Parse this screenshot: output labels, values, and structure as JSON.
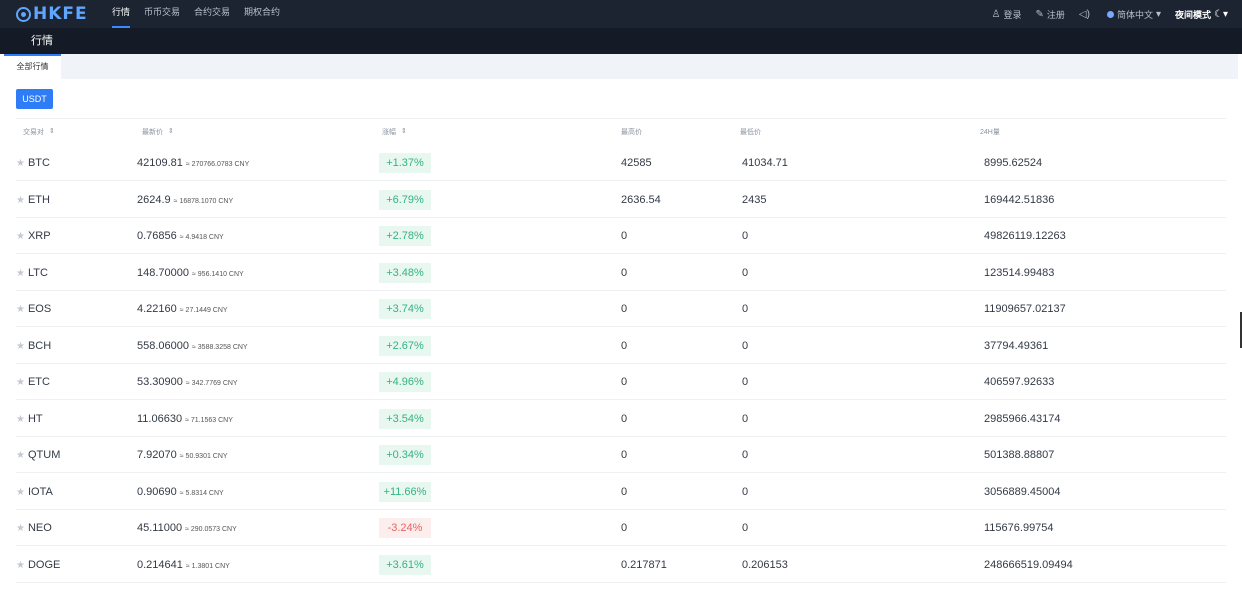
{
  "header": {
    "logo": "HKFE",
    "nav": [
      "行情",
      "币币交易",
      "合约交易",
      "期权合约"
    ],
    "login": "登录",
    "register": "注册",
    "language": "简体中文",
    "night_mode": "夜间模式"
  },
  "subbar": {
    "title": "行情"
  },
  "tabs": {
    "all": "全部行情"
  },
  "quote_button": "USDT",
  "table": {
    "headers": {
      "pair": "交易对",
      "last": "最新价",
      "change": "涨幅",
      "high": "最高价",
      "low": "最低价",
      "volume": "24H量"
    },
    "rows": [
      {
        "pair": "BTC",
        "price": "42109.81",
        "cny": "≈ 270766.0783 CNY",
        "change": "+1.37%",
        "dir": "up",
        "high": "42585",
        "low": "41034.71",
        "volume": "8995.62524"
      },
      {
        "pair": "ETH",
        "price": "2624.9",
        "cny": "≈ 16878.1070 CNY",
        "change": "+6.79%",
        "dir": "up",
        "high": "2636.54",
        "low": "2435",
        "volume": "169442.51836"
      },
      {
        "pair": "XRP",
        "price": "0.76856",
        "cny": "≈ 4.9418 CNY",
        "change": "+2.78%",
        "dir": "up",
        "high": "0",
        "low": "0",
        "volume": "49826119.12263"
      },
      {
        "pair": "LTC",
        "price": "148.70000",
        "cny": "≈ 956.1410 CNY",
        "change": "+3.48%",
        "dir": "up",
        "high": "0",
        "low": "0",
        "volume": "123514.99483"
      },
      {
        "pair": "EOS",
        "price": "4.22160",
        "cny": "≈ 27.1449 CNY",
        "change": "+3.74%",
        "dir": "up",
        "high": "0",
        "low": "0",
        "volume": "11909657.02137"
      },
      {
        "pair": "BCH",
        "price": "558.06000",
        "cny": "≈ 3588.3258 CNY",
        "change": "+2.67%",
        "dir": "up",
        "high": "0",
        "low": "0",
        "volume": "37794.49361"
      },
      {
        "pair": "ETC",
        "price": "53.30900",
        "cny": "≈ 342.7769 CNY",
        "change": "+4.96%",
        "dir": "up",
        "high": "0",
        "low": "0",
        "volume": "406597.92633"
      },
      {
        "pair": "HT",
        "price": "11.06630",
        "cny": "≈ 71.1563 CNY",
        "change": "+3.54%",
        "dir": "up",
        "high": "0",
        "low": "0",
        "volume": "2985966.43174"
      },
      {
        "pair": "QTUM",
        "price": "7.92070",
        "cny": "≈ 50.9301 CNY",
        "change": "+0.34%",
        "dir": "up",
        "high": "0",
        "low": "0",
        "volume": "501388.88807"
      },
      {
        "pair": "IOTA",
        "price": "0.90690",
        "cny": "≈ 5.8314 CNY",
        "change": "+11.66%",
        "dir": "up",
        "high": "0",
        "low": "0",
        "volume": "3056889.45004"
      },
      {
        "pair": "NEO",
        "price": "45.11000",
        "cny": "≈ 290.0573 CNY",
        "change": "-3.24%",
        "dir": "down",
        "high": "0",
        "low": "0",
        "volume": "115676.99754"
      },
      {
        "pair": "DOGE",
        "price": "0.214641",
        "cny": "≈ 1.3801 CNY",
        "change": "+3.61%",
        "dir": "up",
        "high": "0.217871",
        "low": "0.206153",
        "volume": "248666519.09494"
      }
    ]
  },
  "colors": {
    "up": "#34b37f",
    "down": "#e86464",
    "accent": "#2f7df6",
    "nav_bg": "#1c2331"
  }
}
